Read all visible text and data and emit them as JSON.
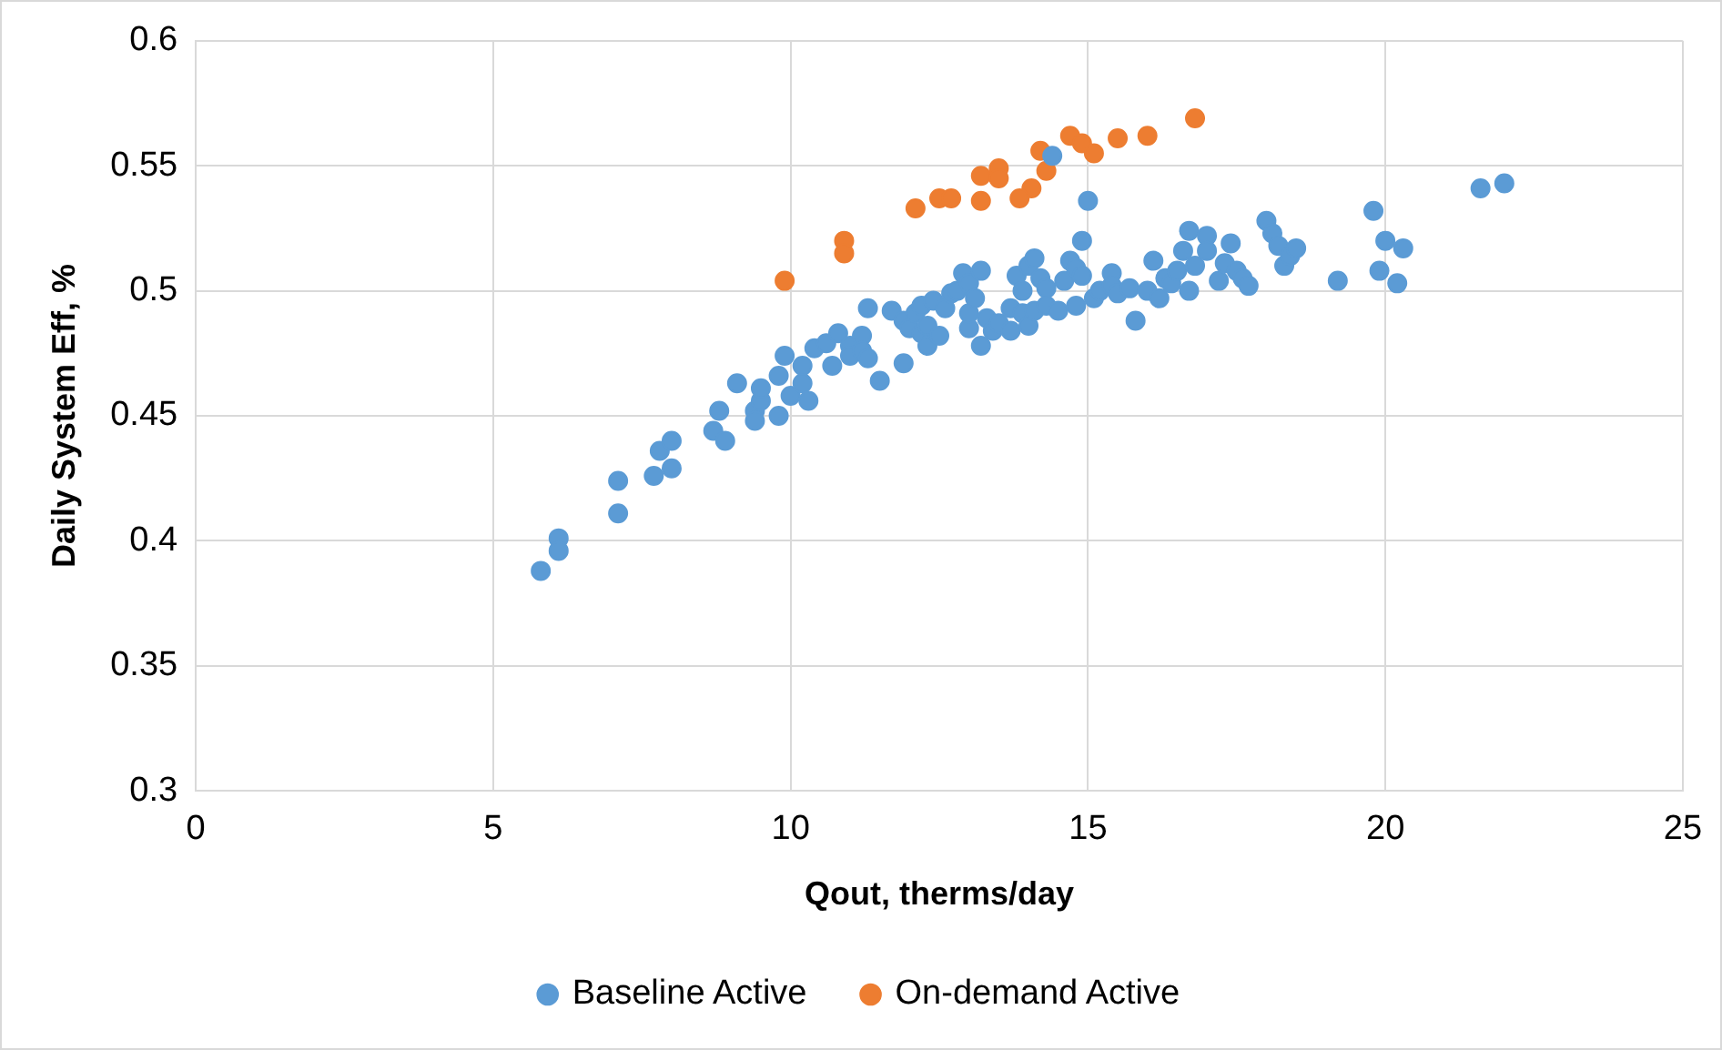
{
  "chart_data": {
    "type": "scatter",
    "xlabel": "Qout, therms/day",
    "ylabel": "Daily System Eff, %",
    "xlim": [
      0,
      25
    ],
    "xticks": [
      0,
      5,
      10,
      15,
      20,
      25
    ],
    "ylim": [
      0.3,
      0.6
    ],
    "yticks": [
      {
        "value": 0.3,
        "label": "0.3"
      },
      {
        "value": 0.35,
        "label": "0.35"
      },
      {
        "value": 0.4,
        "label": "0.4"
      },
      {
        "value": 0.45,
        "label": "0.45"
      },
      {
        "value": 0.5,
        "label": "0.5"
      },
      {
        "value": 0.55,
        "label": "0.55"
      },
      {
        "value": 0.6,
        "label": "0.6"
      }
    ],
    "grid": true,
    "legend": "bottom",
    "marker": "circle",
    "series": [
      {
        "name": "Baseline Active",
        "color": "#5b9bd5",
        "x": [
          5.8,
          6.1,
          6.1,
          7.1,
          7.1,
          7.7,
          7.8,
          8.0,
          8.0,
          8.7,
          8.8,
          8.9,
          9.1,
          9.4,
          9.4,
          9.5,
          9.5,
          9.8,
          9.9,
          9.8,
          10.0,
          10.2,
          10.2,
          10.3,
          10.4,
          10.6,
          10.7,
          10.8,
          11.0,
          11.0,
          11.2,
          11.2,
          11.3,
          11.3,
          11.5,
          11.7,
          11.9,
          11.9,
          12.0,
          12.1,
          12.2,
          12.2,
          12.3,
          12.3,
          12.4,
          12.5,
          12.6,
          12.7,
          12.8,
          12.9,
          13.0,
          13.0,
          13.0,
          13.1,
          13.2,
          13.2,
          13.3,
          13.4,
          13.5,
          13.7,
          13.7,
          13.8,
          13.9,
          13.9,
          14.0,
          14.0,
          14.1,
          14.1,
          14.2,
          14.3,
          14.3,
          14.4,
          14.5,
          14.6,
          14.7,
          14.8,
          14.8,
          14.9,
          14.9,
          15.0,
          15.1,
          15.2,
          15.4,
          15.4,
          15.5,
          15.7,
          15.8,
          16.0,
          16.1,
          16.2,
          16.3,
          16.4,
          16.5,
          16.6,
          16.7,
          16.7,
          16.8,
          17.0,
          17.0,
          17.2,
          17.3,
          17.4,
          17.5,
          17.6,
          17.7,
          18.0,
          18.1,
          18.2,
          18.3,
          18.4,
          18.5,
          19.2,
          19.8,
          19.9,
          20.0,
          20.2,
          20.3,
          21.6,
          22.0
        ],
        "values": [
          0.388,
          0.401,
          0.396,
          0.424,
          0.411,
          0.426,
          0.436,
          0.44,
          0.429,
          0.444,
          0.452,
          0.44,
          0.463,
          0.452,
          0.448,
          0.456,
          0.461,
          0.466,
          0.474,
          0.45,
          0.458,
          0.47,
          0.463,
          0.456,
          0.477,
          0.479,
          0.47,
          0.483,
          0.478,
          0.474,
          0.482,
          0.476,
          0.473,
          0.493,
          0.464,
          0.492,
          0.488,
          0.471,
          0.485,
          0.491,
          0.494,
          0.483,
          0.478,
          0.486,
          0.496,
          0.482,
          0.493,
          0.499,
          0.5,
          0.507,
          0.485,
          0.491,
          0.503,
          0.497,
          0.508,
          0.478,
          0.489,
          0.484,
          0.487,
          0.484,
          0.493,
          0.506,
          0.5,
          0.491,
          0.486,
          0.51,
          0.513,
          0.492,
          0.505,
          0.501,
          0.494,
          0.554,
          0.492,
          0.504,
          0.512,
          0.509,
          0.494,
          0.506,
          0.52,
          0.536,
          0.497,
          0.5,
          0.507,
          0.502,
          0.499,
          0.501,
          0.488,
          0.5,
          0.512,
          0.497,
          0.505,
          0.503,
          0.508,
          0.516,
          0.524,
          0.5,
          0.51,
          0.522,
          0.516,
          0.504,
          0.511,
          0.519,
          0.508,
          0.505,
          0.502,
          0.528,
          0.523,
          0.518,
          0.51,
          0.514,
          0.517,
          0.504,
          0.532,
          0.508,
          0.52,
          0.503,
          0.517,
          0.541,
          0.543
        ]
      },
      {
        "name": "On-demand Active",
        "color": "#ed7d31",
        "x": [
          9.9,
          10.9,
          10.9,
          12.1,
          12.5,
          12.7,
          13.2,
          13.2,
          13.5,
          13.5,
          14.05,
          13.85,
          14.2,
          14.3,
          14.7,
          14.9,
          15.1,
          15.5,
          16.0,
          16.8
        ],
        "values": [
          0.504,
          0.52,
          0.515,
          0.533,
          0.537,
          0.537,
          0.546,
          0.536,
          0.549,
          0.545,
          0.541,
          0.537,
          0.556,
          0.548,
          0.562,
          0.559,
          0.555,
          0.561,
          0.562,
          0.569
        ]
      }
    ]
  }
}
